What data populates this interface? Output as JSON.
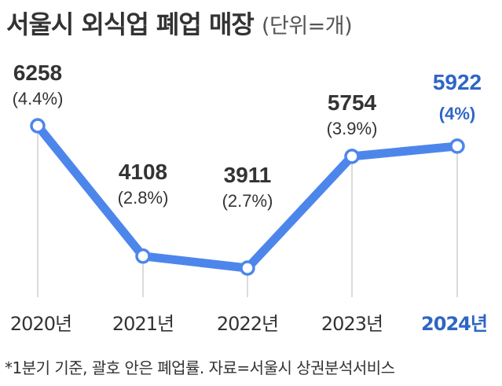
{
  "title": {
    "main": "서울시 외식업 폐업 매장",
    "unit": "(단위=개)"
  },
  "footnote": "*1분기 기준, 괄호 안은 폐업률. 자료=서울시 상권분석서비스",
  "colors": {
    "line": "#4d86eb",
    "highlight": "#2f66c4",
    "text": "#333333",
    "guide": "#cfcfcf"
  },
  "chart_data": {
    "type": "line",
    "categories": [
      "2020년",
      "2021년",
      "2022년",
      "2023년",
      "2024년"
    ],
    "values": [
      6258,
      4108,
      3911,
      5754,
      5922
    ],
    "value_labels": [
      "6258",
      "4108",
      "3911",
      "5754",
      "5922"
    ],
    "percent_labels": [
      "(4.4%)",
      "(2.8%)",
      "(2.7%)",
      "(3.9%)",
      "(4%)"
    ],
    "highlight_index": 4,
    "grid": false,
    "legend": "none"
  }
}
